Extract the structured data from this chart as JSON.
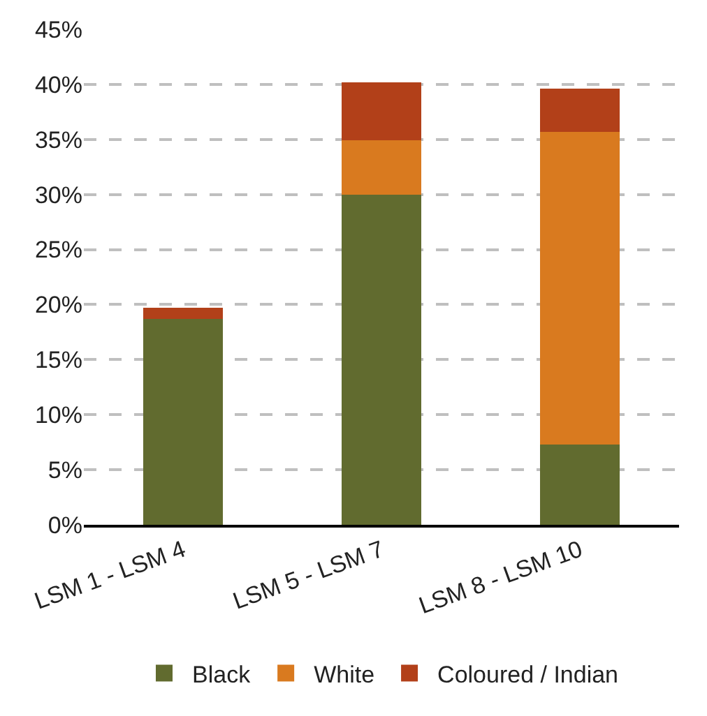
{
  "chart_data": {
    "type": "bar",
    "stacked": true,
    "categories": [
      "LSM 1 - LSM 4",
      "LSM 5 - LSM 7",
      "LSM 8 - LSM 10"
    ],
    "series": [
      {
        "name": "Black",
        "color": "#616b2f",
        "values": [
          18.7,
          30.0,
          7.3
        ]
      },
      {
        "name": "White",
        "color": "#d97a1f",
        "values": [
          null,
          4.9,
          28.4
        ]
      },
      {
        "name": "Coloured / Indian",
        "color": "#b24019",
        "values": [
          1.0,
          5.3,
          3.9
        ]
      }
    ],
    "ylim": [
      0,
      45
    ],
    "yticks": [
      {
        "value": 0,
        "label": "0%"
      },
      {
        "value": 5,
        "label": "5%"
      },
      {
        "value": 10,
        "label": "10%"
      },
      {
        "value": 15,
        "label": "15%"
      },
      {
        "value": 20,
        "label": "20%"
      },
      {
        "value": 25,
        "label": "25%"
      },
      {
        "value": 30,
        "label": "30%"
      },
      {
        "value": 35,
        "label": "35%"
      },
      {
        "value": 40,
        "label": "40%"
      },
      {
        "value": 45,
        "label": "45%"
      }
    ],
    "grid": "y",
    "legend": "bottom"
  }
}
